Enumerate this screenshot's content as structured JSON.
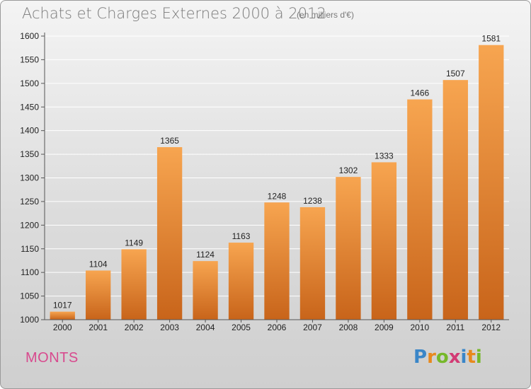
{
  "header": {
    "title": "Achats et Charges Externes 2000 à 2012",
    "unit": "(en milliers d'€)"
  },
  "footer": {
    "city": "MONTS",
    "logo_text": "Proxiti",
    "logo_colors": [
      "#3a86c8",
      "#e8891c",
      "#76b82a",
      "#d23b74",
      "#3a86c8",
      "#e8891c",
      "#76b82a"
    ]
  },
  "colors": {
    "bar_light": "#f7a550",
    "bar_dark": "#c8641a",
    "grid": "#ffffff",
    "axis_text": "#222222"
  },
  "chart_data": {
    "type": "bar",
    "title": "Achats et Charges Externes 2000 à 2012",
    "subtitle": "(en milliers d'€)",
    "categories": [
      "2000",
      "2001",
      "2002",
      "2003",
      "2004",
      "2005",
      "2006",
      "2007",
      "2008",
      "2009",
      "2010",
      "2011",
      "2012"
    ],
    "values": [
      1017,
      1104,
      1149,
      1365,
      1124,
      1163,
      1248,
      1238,
      1302,
      1333,
      1466,
      1507,
      1581
    ],
    "ylim": [
      1000,
      1600
    ],
    "yticks": [
      1000,
      1050,
      1100,
      1150,
      1200,
      1250,
      1300,
      1350,
      1400,
      1450,
      1500,
      1550,
      1600
    ],
    "grid": true,
    "data_labels": true
  }
}
